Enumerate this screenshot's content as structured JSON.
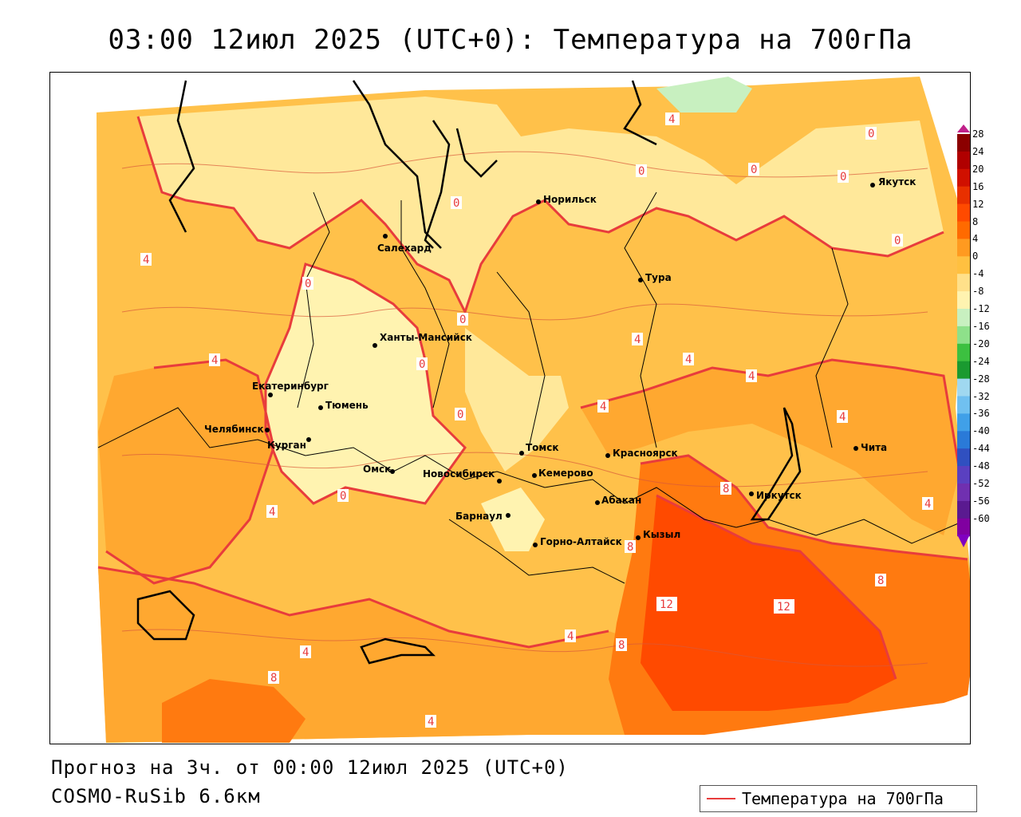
{
  "title": "03:00 12июл 2025 (UTC+0): Температура на 700гПа",
  "footer": {
    "forecast": "Прогноз на 3ч. от 00:00 12июл 2025 (UTC+0)",
    "model": "COSMO-RuSib 6.6км"
  },
  "legend": {
    "label": "Температура на 700гПа",
    "color": "#e83c3c"
  },
  "colorbar": {
    "ticks": [
      "28",
      "24",
      "20",
      "16",
      "12",
      "8",
      "4",
      "0",
      "-4",
      "-8",
      "-12",
      "-16",
      "-20",
      "-24",
      "-28",
      "-32",
      "-36",
      "-40",
      "-44",
      "-48",
      "-52",
      "-56",
      "-60"
    ],
    "colors": [
      "#8b0000",
      "#b00000",
      "#d01000",
      "#e83000",
      "#ff4a00",
      "#ff6a00",
      "#ff9a20",
      "#ffc040",
      "#ffe08a",
      "#fff3b0",
      "#c8f0c0",
      "#8ee08a",
      "#3cc040",
      "#1a9a30",
      "#a0d8f0",
      "#70c0f0",
      "#40a0e8",
      "#2a7ad8",
      "#3050c0",
      "#5a40c0",
      "#7030b0",
      "#5a1a90",
      "#8000a0"
    ]
  },
  "cities": [
    {
      "name": "Салехард"
    },
    {
      "name": "Норильск"
    },
    {
      "name": "Якутск"
    },
    {
      "name": "Тура"
    },
    {
      "name": "Ханты-Мансийск"
    },
    {
      "name": "Екатеринбург"
    },
    {
      "name": "Тюмень"
    },
    {
      "name": "Челябинск"
    },
    {
      "name": "Курган"
    },
    {
      "name": "Омск"
    },
    {
      "name": "Новосибирск"
    },
    {
      "name": "Томск"
    },
    {
      "name": "Кемерово"
    },
    {
      "name": "Барнаул"
    },
    {
      "name": "Горно-Алтайск"
    },
    {
      "name": "Абакан"
    },
    {
      "name": "Красноярск"
    },
    {
      "name": "Кызыл"
    },
    {
      "name": "Иркутск"
    },
    {
      "name": "Чита"
    }
  ],
  "contour_labels": [
    "0",
    "0",
    "0",
    "0",
    "0",
    "0",
    "0",
    "0",
    "0",
    "0",
    "0",
    "4",
    "4",
    "4",
    "4",
    "4",
    "4",
    "4",
    "4",
    "4",
    "4",
    "4",
    "4",
    "4",
    "8",
    "8",
    "8",
    "8",
    "8",
    "12",
    "12"
  ]
}
